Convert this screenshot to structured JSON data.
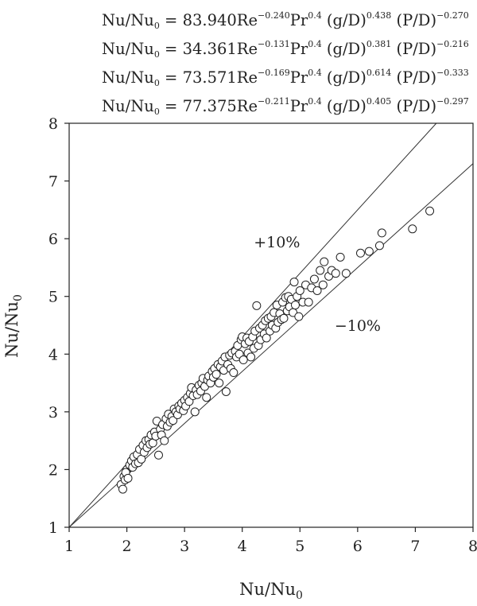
{
  "equations": [
    {
      "lhs": "Nu/Nu",
      "lhs_sub": "0",
      "eq": " = ",
      "coef": "83.940",
      "re": "Re",
      "re_exp": "−0.240",
      "pr": "Pr",
      "pr_exp": "0.4",
      "gd": " (g/D)",
      "gd_exp": "0.438",
      "pd": " (P/D)",
      "pd_exp": "−0.270"
    },
    {
      "lhs": "Nu/Nu",
      "lhs_sub": "0",
      "eq": " = ",
      "coef": "34.361",
      "re": "Re",
      "re_exp": "−0.131",
      "pr": "Pr",
      "pr_exp": "0.4",
      "gd": " (g/D)",
      "gd_exp": "0.381",
      "pd": " (P/D)",
      "pd_exp": "−0.216"
    },
    {
      "lhs": "Nu/Nu",
      "lhs_sub": "0",
      "eq": " = ",
      "coef": "73.571",
      "re": "Re",
      "re_exp": "−0.169",
      "pr": "Pr",
      "pr_exp": "0.4",
      "gd": " (g/D)",
      "gd_exp": "0.614",
      "pd": " (P/D)",
      "pd_exp": "−0.333"
    },
    {
      "lhs": "Nu/Nu",
      "lhs_sub": "0",
      "eq": " = ",
      "coef": "77.375",
      "re": "Re",
      "re_exp": "−0.211",
      "pr": "Pr",
      "pr_exp": "0.4",
      "gd": " (g/D)",
      "gd_exp": "0.405",
      "pd": " (P/D)",
      "pd_exp": "−0.297"
    }
  ],
  "chart_data": {
    "type": "scatter",
    "xlabel": "Nu/Nu",
    "xlabel_sub": "0",
    "ylabel": "Nu/Nu",
    "ylabel_sub": "0",
    "xlim": [
      1,
      8
    ],
    "ylim": [
      1,
      8
    ],
    "xticks": [
      "1",
      "2",
      "3",
      "4",
      "5",
      "6",
      "7",
      "8"
    ],
    "yticks": [
      "1",
      "2",
      "3",
      "4",
      "5",
      "6",
      "7",
      "8"
    ],
    "grid": false,
    "marker": "open-circle",
    "reference_lines": [
      {
        "label": "+10%",
        "slope": 1.1,
        "from": [
          1,
          1
        ],
        "label_pos": [
          4.2,
          5.95
        ]
      },
      {
        "label": "−10%",
        "slope": 0.9,
        "from": [
          1,
          1
        ],
        "label_pos": [
          5.6,
          4.5
        ]
      }
    ],
    "points": [
      [
        1.9,
        1.74
      ],
      [
        1.93,
        1.66
      ],
      [
        1.95,
        1.88
      ],
      [
        1.97,
        1.82
      ],
      [
        2.0,
        2.0
      ],
      [
        1.98,
        1.95
      ],
      [
        2.02,
        1.85
      ],
      [
        2.05,
        2.08
      ],
      [
        2.08,
        2.15
      ],
      [
        2.1,
        2.04
      ],
      [
        2.12,
        2.22
      ],
      [
        2.15,
        2.1
      ],
      [
        2.18,
        2.26
      ],
      [
        2.2,
        2.12
      ],
      [
        2.22,
        2.35
      ],
      [
        2.25,
        2.18
      ],
      [
        2.28,
        2.42
      ],
      [
        2.3,
        2.3
      ],
      [
        2.33,
        2.5
      ],
      [
        2.35,
        2.38
      ],
      [
        2.38,
        2.52
      ],
      [
        2.4,
        2.44
      ],
      [
        2.42,
        2.6
      ],
      [
        2.45,
        2.46
      ],
      [
        2.48,
        2.65
      ],
      [
        2.5,
        2.58
      ],
      [
        2.52,
        2.84
      ],
      [
        2.55,
        2.25
      ],
      [
        2.58,
        2.7
      ],
      [
        2.6,
        2.6
      ],
      [
        2.62,
        2.78
      ],
      [
        2.65,
        2.5
      ],
      [
        2.68,
        2.88
      ],
      [
        2.7,
        2.75
      ],
      [
        2.72,
        2.96
      ],
      [
        2.75,
        2.82
      ],
      [
        2.78,
        2.92
      ],
      [
        2.8,
        2.85
      ],
      [
        2.82,
        3.05
      ],
      [
        2.85,
        3.0
      ],
      [
        2.88,
        2.95
      ],
      [
        2.9,
        3.1
      ],
      [
        2.92,
        3.05
      ],
      [
        2.95,
        3.15
      ],
      [
        2.98,
        3.02
      ],
      [
        3.0,
        3.2
      ],
      [
        3.02,
        3.1
      ],
      [
        3.05,
        3.25
      ],
      [
        3.08,
        3.18
      ],
      [
        3.1,
        3.32
      ],
      [
        3.12,
        3.42
      ],
      [
        3.15,
        3.28
      ],
      [
        3.18,
        3.0
      ],
      [
        3.2,
        3.38
      ],
      [
        3.22,
        3.3
      ],
      [
        3.25,
        3.46
      ],
      [
        3.28,
        3.36
      ],
      [
        3.3,
        3.5
      ],
      [
        3.32,
        3.58
      ],
      [
        3.35,
        3.44
      ],
      [
        3.38,
        3.25
      ],
      [
        3.4,
        3.55
      ],
      [
        3.42,
        3.62
      ],
      [
        3.45,
        3.5
      ],
      [
        3.48,
        3.7
      ],
      [
        3.5,
        3.6
      ],
      [
        3.52,
        3.75
      ],
      [
        3.55,
        3.65
      ],
      [
        3.58,
        3.82
      ],
      [
        3.6,
        3.5
      ],
      [
        3.62,
        3.78
      ],
      [
        3.65,
        3.88
      ],
      [
        3.68,
        3.72
      ],
      [
        3.7,
        3.95
      ],
      [
        3.72,
        3.35
      ],
      [
        3.75,
        3.82
      ],
      [
        3.78,
        3.98
      ],
      [
        3.8,
        3.75
      ],
      [
        3.82,
        4.02
      ],
      [
        3.85,
        3.68
      ],
      [
        3.88,
        4.05
      ],
      [
        3.9,
        3.95
      ],
      [
        3.92,
        4.15
      ],
      [
        3.95,
        4.0
      ],
      [
        3.98,
        4.25
      ],
      [
        4.0,
        4.3
      ],
      [
        4.02,
        3.9
      ],
      [
        4.05,
        4.18
      ],
      [
        4.08,
        4.28
      ],
      [
        4.1,
        4.02
      ],
      [
        4.12,
        4.22
      ],
      [
        4.15,
        3.95
      ],
      [
        4.18,
        4.3
      ],
      [
        4.2,
        4.1
      ],
      [
        4.22,
        4.4
      ],
      [
        4.25,
        4.84
      ],
      [
        4.28,
        4.15
      ],
      [
        4.3,
        4.45
      ],
      [
        4.32,
        4.25
      ],
      [
        4.35,
        4.5
      ],
      [
        4.38,
        4.35
      ],
      [
        4.4,
        4.58
      ],
      [
        4.42,
        4.28
      ],
      [
        4.45,
        4.62
      ],
      [
        4.48,
        4.4
      ],
      [
        4.5,
        4.65
      ],
      [
        4.52,
        4.5
      ],
      [
        4.55,
        4.72
      ],
      [
        4.58,
        4.45
      ],
      [
        4.6,
        4.85
      ],
      [
        4.62,
        4.55
      ],
      [
        4.65,
        4.7
      ],
      [
        4.68,
        4.6
      ],
      [
        4.7,
        4.9
      ],
      [
        4.72,
        4.62
      ],
      [
        4.75,
        4.98
      ],
      [
        4.78,
        4.75
      ],
      [
        4.8,
        5.0
      ],
      [
        4.82,
        4.82
      ],
      [
        4.85,
        4.95
      ],
      [
        4.88,
        4.72
      ],
      [
        4.9,
        5.25
      ],
      [
        4.92,
        4.85
      ],
      [
        4.95,
        5.0
      ],
      [
        4.98,
        4.65
      ],
      [
        5.0,
        5.1
      ],
      [
        5.05,
        4.9
      ],
      [
        5.1,
        5.2
      ],
      [
        5.15,
        4.9
      ],
      [
        5.2,
        5.15
      ],
      [
        5.25,
        5.3
      ],
      [
        5.3,
        5.1
      ],
      [
        5.35,
        5.45
      ],
      [
        5.4,
        5.2
      ],
      [
        5.42,
        5.6
      ],
      [
        5.5,
        5.35
      ],
      [
        5.55,
        5.45
      ],
      [
        5.62,
        5.4
      ],
      [
        5.7,
        5.68
      ],
      [
        5.8,
        5.4
      ],
      [
        6.05,
        5.75
      ],
      [
        6.2,
        5.78
      ],
      [
        6.38,
        5.88
      ],
      [
        6.42,
        6.1
      ],
      [
        6.95,
        6.17
      ],
      [
        7.25,
        6.48
      ]
    ]
  }
}
